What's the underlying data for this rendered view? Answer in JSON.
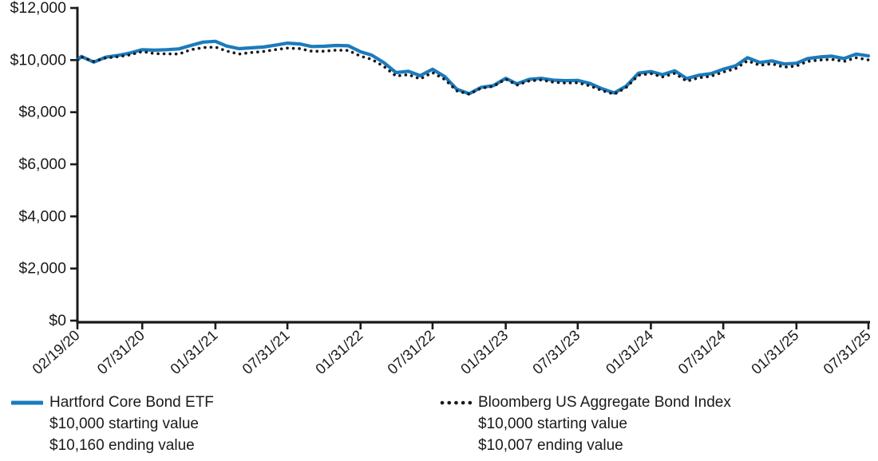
{
  "chart_data": {
    "type": "line",
    "title": "",
    "xlabel": "",
    "ylabel": "",
    "ylim": [
      0,
      12000
    ],
    "y_ticks": [
      0,
      2000,
      4000,
      6000,
      8000,
      10000,
      12000
    ],
    "y_tick_labels": [
      "$0",
      "$2,000",
      "$4,000",
      "$6,000",
      "$8,000",
      "$10,000",
      "$12,000"
    ],
    "x_tick_labels": [
      "02/19/20",
      "07/31/20",
      "01/31/21",
      "07/31/21",
      "01/31/22",
      "07/31/22",
      "01/31/23",
      "07/31/23",
      "01/31/24",
      "07/31/24",
      "01/31/25",
      "07/31/25"
    ],
    "grid": false,
    "legend_position": "bottom",
    "dates": [
      "02/19/20",
      "02/29/20",
      "03/31/20",
      "04/30/20",
      "05/31/20",
      "06/30/20",
      "07/31/20",
      "08/31/20",
      "09/30/20",
      "10/31/20",
      "11/30/20",
      "12/31/20",
      "01/31/21",
      "02/28/21",
      "03/31/21",
      "04/30/21",
      "05/31/21",
      "06/30/21",
      "07/31/21",
      "08/31/21",
      "09/30/21",
      "10/31/21",
      "11/30/21",
      "12/31/21",
      "01/31/22",
      "02/28/22",
      "03/31/22",
      "04/30/22",
      "05/31/22",
      "06/30/22",
      "07/31/22",
      "08/31/22",
      "09/30/22",
      "10/31/22",
      "11/30/22",
      "12/31/22",
      "01/31/23",
      "02/28/23",
      "03/31/23",
      "04/30/23",
      "05/31/23",
      "06/30/23",
      "07/31/23",
      "08/31/23",
      "09/30/23",
      "10/31/23",
      "11/30/23",
      "12/31/23",
      "01/31/24",
      "02/29/24",
      "03/31/24",
      "04/30/24",
      "05/31/24",
      "06/30/24",
      "07/31/24",
      "08/31/24",
      "09/30/24",
      "10/31/24",
      "11/30/24",
      "12/31/24",
      "01/31/25",
      "02/28/25",
      "03/31/25",
      "04/30/25",
      "05/31/25",
      "06/30/25",
      "07/31/25"
    ],
    "series": [
      {
        "name": "Hartford Core Bond ETF",
        "style": "solid",
        "color": "#1b7bbd",
        "values": [
          10000,
          10140,
          9920,
          10110,
          10180,
          10270,
          10400,
          10380,
          10400,
          10430,
          10560,
          10690,
          10720,
          10540,
          10440,
          10470,
          10500,
          10570,
          10650,
          10620,
          10520,
          10530,
          10560,
          10550,
          10320,
          10190,
          9900,
          9520,
          9570,
          9400,
          9650,
          9360,
          8880,
          8710,
          8950,
          9020,
          9300,
          9090,
          9260,
          9300,
          9230,
          9210,
          9220,
          9100,
          8900,
          8740,
          9000,
          9500,
          9560,
          9440,
          9590,
          9290,
          9420,
          9480,
          9650,
          9780,
          10090,
          9910,
          9970,
          9850,
          9880,
          10060,
          10120,
          10150,
          10060,
          10230,
          10160
        ]
      },
      {
        "name": "Bloomberg US Aggregate Bond Index",
        "style": "dotted",
        "color": "#1a1a1a",
        "values": [
          10000,
          10120,
          9950,
          10080,
          10130,
          10200,
          10330,
          10250,
          10240,
          10230,
          10400,
          10480,
          10500,
          10350,
          10230,
          10290,
          10330,
          10400,
          10460,
          10440,
          10340,
          10340,
          10380,
          10370,
          10150,
          10030,
          9750,
          9390,
          9440,
          9280,
          9520,
          9250,
          8820,
          8690,
          8920,
          8990,
          9270,
          9040,
          9200,
          9240,
          9150,
          9120,
          9130,
          9010,
          8830,
          8690,
          8950,
          9420,
          9480,
          9350,
          9490,
          9190,
          9320,
          9380,
          9540,
          9670,
          9970,
          9800,
          9860,
          9730,
          9770,
          9950,
          10000,
          10030,
          9950,
          10090,
          10007
        ]
      }
    ]
  },
  "legend": {
    "items": [
      {
        "name": "Hartford Core Bond ETF",
        "starting_value_label": "$10,000 starting value",
        "ending_value_label": "$10,160 ending value",
        "swatch": "solid-line",
        "color": "#1b7bbd"
      },
      {
        "name": "Bloomberg US Aggregate Bond Index",
        "starting_value_label": "$10,000 starting value",
        "ending_value_label": "$10,007 ending value",
        "swatch": "dotted-line",
        "color": "#1a1a1a"
      }
    ]
  },
  "colors": {
    "axis": "#1a1a1a",
    "text": "#1a1a1a",
    "background": "#ffffff"
  }
}
